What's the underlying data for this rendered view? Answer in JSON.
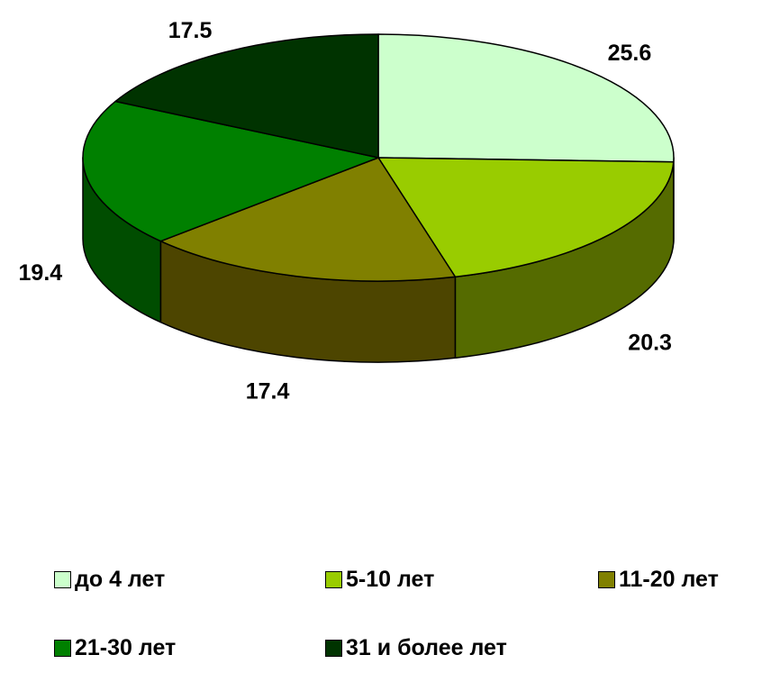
{
  "chart_data": {
    "type": "pie",
    "title": "",
    "categories": [
      "до 4 лет",
      "5-10 лет",
      "11-20 лет",
      "21-30 лет",
      "31 и более лет"
    ],
    "values": [
      25.6,
      20.3,
      17.4,
      19.4,
      17.5
    ],
    "value_labels": [
      "25.6",
      "20.3",
      "17.4",
      "19.4",
      "17.5"
    ],
    "colors": [
      "#ccffcc",
      "#99cc00",
      "#808000",
      "#008000",
      "#003300"
    ],
    "side_colors": [
      "#99bb99",
      "#556b00",
      "#4d4500",
      "#004d00",
      "#001a00"
    ],
    "style": "3d",
    "legend_position": "bottom"
  }
}
